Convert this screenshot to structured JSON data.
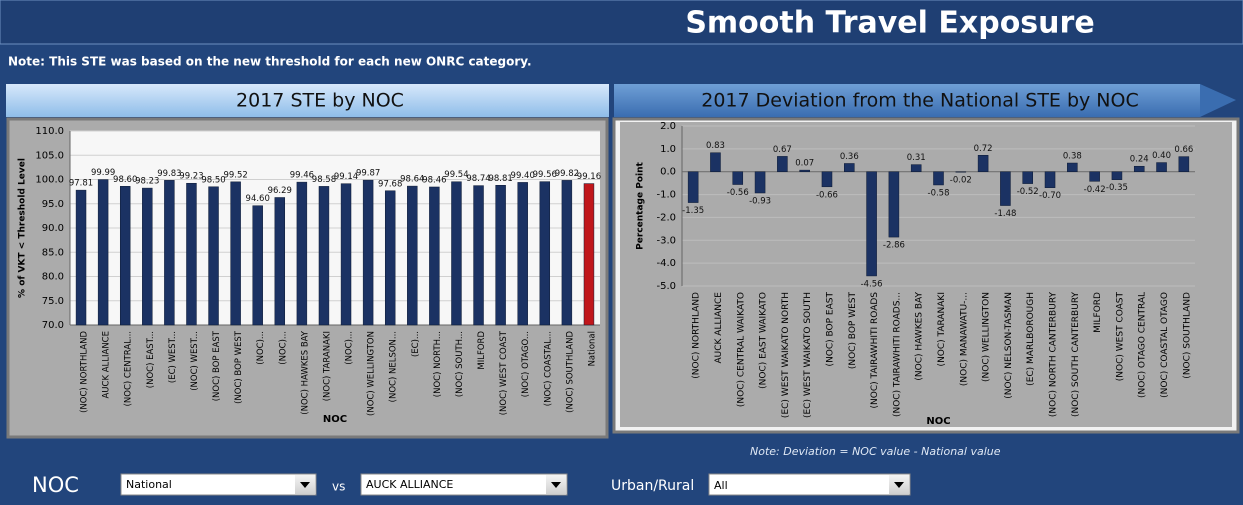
{
  "header": {
    "title": "Smooth Travel Exposure",
    "note": "Note: This STE was based on the new threshold for each new ONRC category."
  },
  "chart_data": [
    {
      "type": "bar",
      "title": "2017  STE  by NOC",
      "y_label": "% of VKT < Threshold Level",
      "x_label": "NOC",
      "categories": [
        "(NOC) NORTHLAND",
        "AUCK ALLIANCE",
        "(NOC) CENTRAL...",
        "(NOC) EAST...",
        "(EC) WEST...",
        "(NOC) WEST...",
        "(NOC) BOP EAST",
        "(NOC) BOP WEST",
        "(NOC)...",
        "(NOC)...",
        "(NOC) HAWKES BAY",
        "(NOC) TARANAKI",
        "(NOC)...",
        "(NOC) WELLINGTON",
        "(NOC) NELSON...",
        "(EC)...",
        "(NOC) NORTH...",
        "(NOC) SOUTH...",
        "MILFORD",
        "(NOC) WEST COAST",
        "(NOC) OTAGO...",
        "(NOC) COASTAL...",
        "(NOC) SOUTHLAND",
        "National"
      ],
      "values": [
        97.81,
        99.99,
        98.6,
        98.23,
        99.83,
        99.23,
        98.5,
        99.52,
        94.6,
        96.29,
        99.46,
        98.58,
        99.14,
        99.87,
        97.68,
        98.64,
        98.46,
        99.54,
        98.74,
        98.81,
        99.4,
        99.56,
        99.82,
        99.16
      ],
      "value_labels": [
        "97.81",
        "99.99",
        "98.60",
        "98.23",
        "99.83",
        "99.23",
        "98.50",
        "99.52",
        "94.60",
        "96.29",
        "99.46",
        "98.58",
        "99.14",
        "99.87",
        "97.68",
        "98.64",
        "98.46",
        "99.54",
        "98.74",
        "98.81",
        "99.40",
        "99.56",
        "99.82",
        "99.16"
      ],
      "colors": [
        "#1b3263",
        "#1b3263",
        "#1b3263",
        "#1b3263",
        "#1b3263",
        "#1b3263",
        "#1b3263",
        "#1b3263",
        "#1b3263",
        "#1b3263",
        "#1b3263",
        "#1b3263",
        "#1b3263",
        "#1b3263",
        "#1b3263",
        "#1b3263",
        "#1b3263",
        "#1b3263",
        "#1b3263",
        "#1b3263",
        "#1b3263",
        "#1b3263",
        "#1b3263",
        "#c0161b"
      ],
      "ylim": [
        70,
        110
      ],
      "yticks": [
        {
          "value": 70,
          "label": "70.0"
        },
        {
          "value": 75,
          "label": "75.0"
        },
        {
          "value": 80,
          "label": "80.0"
        },
        {
          "value": 85,
          "label": "85.0"
        },
        {
          "value": 90,
          "label": "90.0"
        },
        {
          "value": 95,
          "label": "95.0"
        },
        {
          "value": 100,
          "label": "100.0"
        },
        {
          "value": 105,
          "label": "105.0"
        },
        {
          "value": 110,
          "label": "110.0"
        }
      ],
      "grid": true
    },
    {
      "type": "bar",
      "title": "2017 Deviation from the National STE  by NOC",
      "y_label": "Percentage Point",
      "x_label": "NOC",
      "categories": [
        "(NOC) NORTHLAND",
        "AUCK ALLIANCE",
        "(NOC) CENTRAL WAIKATO",
        "(NOC) EAST WAIKATO",
        "(EC) WEST WAIKATO NORTH",
        "(EC) WEST WAIKATO SOUTH",
        "(NOC) BOP EAST",
        "(NOC) BOP WEST",
        "(NOC) TAIRAWHITI ROADS",
        "(NOC) TAIRAWHITI ROADS...",
        "(NOC) HAWKES BAY",
        "(NOC) TARANAKI",
        "(NOC) MANAWATU-...",
        "(NOC) WELLINGTON",
        "(NOC) NELSON-TASMAN",
        "(EC) MARLBOROUGH",
        "(NOC) NORTH CANTERBURY",
        "(NOC) SOUTH CANTERBURY",
        "MILFORD",
        "(NOC) WEST COAST",
        "(NOC) OTAGO CENTRAL",
        "(NOC) COASTAL OTAGO",
        "(NOC) SOUTHLAND"
      ],
      "values": [
        -1.35,
        0.83,
        -0.56,
        -0.93,
        0.67,
        0.07,
        -0.66,
        0.36,
        -4.56,
        -2.86,
        0.31,
        -0.58,
        -0.02,
        0.72,
        -1.48,
        -0.52,
        -0.7,
        0.38,
        -0.42,
        -0.35,
        0.24,
        0.4,
        0.66
      ],
      "value_labels": [
        "-1.35",
        "0.83",
        "-0.56",
        "-0.93",
        "0.67",
        "0.07",
        "-0.66",
        "0.36",
        "-4.56",
        "-2.86",
        "0.31",
        "-0.58",
        "-0.02",
        "0.72",
        "-1.48",
        "-0.52",
        "-0.70",
        "0.38",
        "-0.42",
        "-0.35",
        "0.24",
        "0.40",
        "0.66"
      ],
      "color": "#1b3263",
      "ylim": [
        -5,
        2
      ],
      "yticks": [
        {
          "value": -5,
          "label": "-5.0"
        },
        {
          "value": -4,
          "label": "-4.0"
        },
        {
          "value": -3,
          "label": "-3.0"
        },
        {
          "value": -2,
          "label": "-2.0"
        },
        {
          "value": -1,
          "label": "-1.0"
        },
        {
          "value": 0,
          "label": "0.0"
        },
        {
          "value": 1,
          "label": "1.0"
        },
        {
          "value": 2,
          "label": "2.0"
        }
      ],
      "grid": true,
      "note": "Note: Deviation = NOC value - National value"
    }
  ],
  "controls": {
    "noc_label": "NOC",
    "noc_value": "National",
    "vs_label": "vs",
    "compare_value": "AUCK ALLIANCE",
    "urban_rural_label": "Urban/Rural",
    "urban_rural_value": "All"
  }
}
